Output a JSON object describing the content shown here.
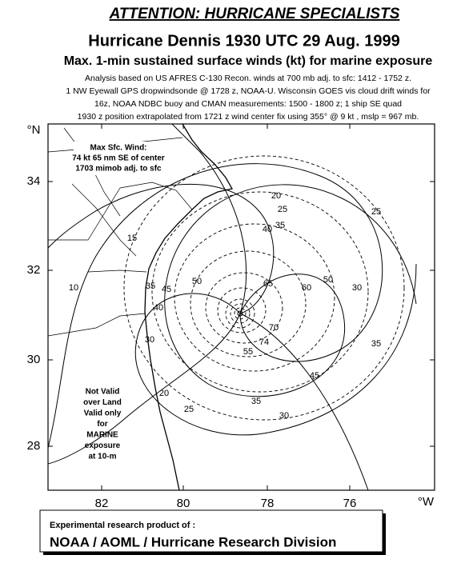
{
  "header": {
    "attention": "ATTENTION: HURRICANE SPECIALISTS",
    "title": "Hurricane Dennis 1930 UTC 29 Aug. 1999",
    "subtitle": "Max. 1-min sustained surface winds (kt) for marine exposure",
    "notes": [
      "Analysis based on US AFRES C-130 Recon. winds at 700 mb adj. to sfc: 1412 - 1752 z.",
      "1 NW Eyewall  GPS dropwindsonde @ 1728 z, NOAA-U. Wisconsin GOES vis cloud drift winds for",
      "16z, NOAA NDBC buoy and CMAN measurements:  1500 - 1800 z; 1 ship SE quad",
      "1930 z  position extrapolated from 1721 z wind center fix  using 355° @ 9 kt , mslp = 967 mb."
    ]
  },
  "map": {
    "lat_ticks": [
      34,
      32,
      30,
      28
    ],
    "lon_ticks": [
      82,
      80,
      78,
      76
    ],
    "lat_unit": "°N",
    "lon_unit": "°W",
    "max_wind_note": [
      "Max Sfc. Wind:",
      "74 kt  65 nm SE of center",
      "1703 mimob adj. to sfc"
    ],
    "validity_note": [
      "Not Valid",
      "over Land",
      "Valid only",
      "for",
      "MARINE",
      "exposure",
      "at 10-m"
    ],
    "contour_labels": [
      20,
      25,
      35,
      40,
      15,
      10,
      35,
      45,
      40,
      50,
      65,
      60,
      50,
      30,
      25,
      70,
      74,
      55,
      45,
      35,
      30,
      25,
      20,
      30,
      35
    ]
  },
  "footer": {
    "line1": "Experimental research product of :",
    "line2": "NOAA / AOML / Hurricane Research Division"
  }
}
